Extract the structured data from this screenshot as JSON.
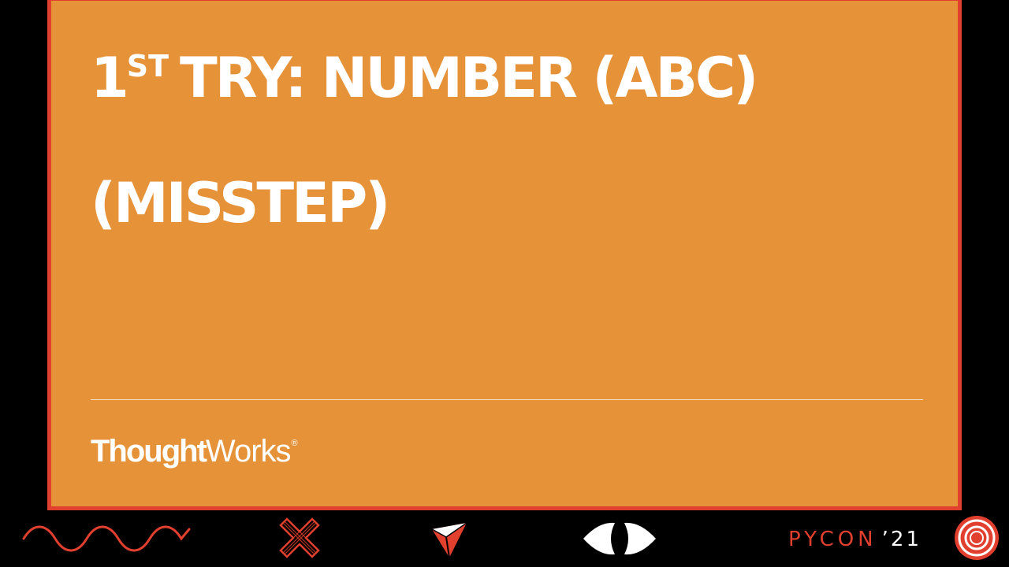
{
  "slide": {
    "title_ordinal": "1",
    "title_ordinal_suffix": "ST",
    "title_line1_rest": "TRY: NUMBER (ABC)",
    "title_line2": "(MISSTEP)",
    "brand_part1": "Thought",
    "brand_part2": "Works",
    "brand_reg": "®"
  },
  "footer": {
    "icons": [
      "wave-icon",
      "x-cross-icon",
      "triangle-icon",
      "eye-icon",
      "target-icon"
    ],
    "event_name": "PYCON",
    "event_year": "’21"
  },
  "colors": {
    "background": "#000000",
    "slide": "#e69238",
    "accent": "#e2402f",
    "text": "#ffffff"
  }
}
